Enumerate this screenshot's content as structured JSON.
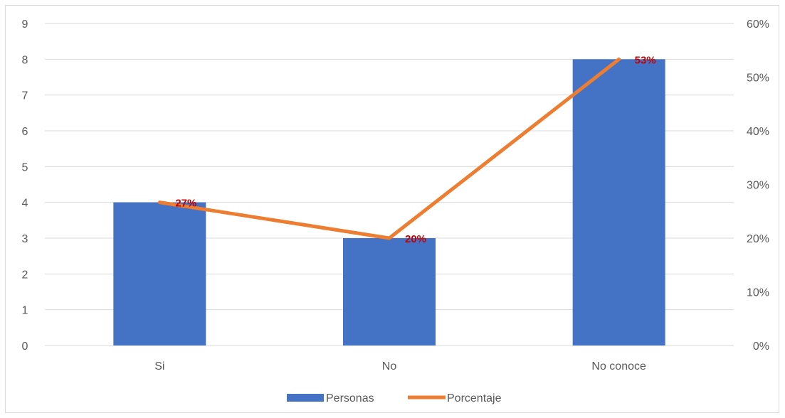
{
  "chart_data": {
    "type": "bar",
    "categories": [
      "Si",
      "No",
      "No conoce"
    ],
    "series": [
      {
        "name": "Personas",
        "type": "bar",
        "axis": "left",
        "values": [
          4,
          3,
          8
        ],
        "color": "#4472C4"
      },
      {
        "name": "Porcentaje",
        "type": "line",
        "axis": "right",
        "values": [
          0.2667,
          0.2,
          0.5333
        ],
        "color": "#ED7D31"
      }
    ],
    "data_labels": [
      "27%",
      "20%",
      "53%"
    ],
    "data_label_color": "#C00000",
    "y_left": {
      "ticks": [
        "0",
        "1",
        "2",
        "3",
        "4",
        "5",
        "6",
        "7",
        "8",
        "9"
      ],
      "ylim": [
        0,
        9
      ]
    },
    "y_right": {
      "ticks": [
        "0%",
        "10%",
        "20%",
        "30%",
        "40%",
        "50%",
        "60%"
      ],
      "ylim": [
        0,
        0.6
      ]
    },
    "grid": true,
    "legend_position": "bottom"
  }
}
